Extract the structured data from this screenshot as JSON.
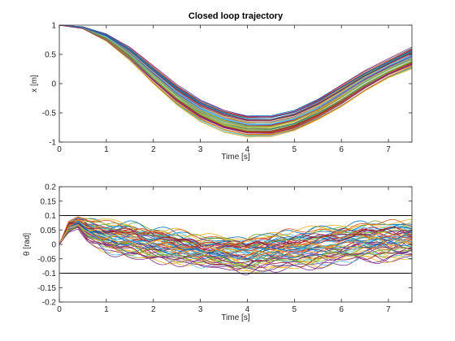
{
  "chart_data": [
    {
      "type": "line",
      "title": "Closed loop trajectory",
      "xlabel": "Time [s]",
      "ylabel": "x [m]",
      "xlim": [
        0,
        7.5
      ],
      "ylim": [
        -1,
        1
      ],
      "xticks": [
        "0",
        "1",
        "2",
        "3",
        "4",
        "5",
        "6",
        "7"
      ],
      "yticks": [
        "-1",
        "-0.5",
        "0",
        "0.5",
        "1"
      ],
      "grid": false,
      "legend": "none",
      "series_count": 60,
      "envelope": {
        "t": [
          0,
          0.5,
          1,
          1.5,
          2,
          2.5,
          3,
          3.5,
          4,
          4.5,
          5,
          5.5,
          6,
          6.5,
          7,
          7.5
        ],
        "lower": [
          1.0,
          0.94,
          0.72,
          0.38,
          -0.02,
          -0.38,
          -0.66,
          -0.84,
          -0.92,
          -0.92,
          -0.82,
          -0.64,
          -0.42,
          -0.15,
          0.08,
          0.24
        ],
        "upper": [
          1.0,
          0.97,
          0.85,
          0.62,
          0.3,
          -0.02,
          -0.28,
          -0.45,
          -0.55,
          -0.55,
          -0.46,
          -0.27,
          -0.02,
          0.22,
          0.42,
          0.62
        ]
      }
    },
    {
      "type": "line",
      "title": "",
      "xlabel": "Time [s]",
      "ylabel": "θ [rad]",
      "xlim": [
        0,
        7.5
      ],
      "ylim": [
        -0.2,
        0.2
      ],
      "xticks": [
        "0",
        "1",
        "2",
        "3",
        "4",
        "5",
        "6",
        "7"
      ],
      "yticks": [
        "-0.2",
        "-0.15",
        "-0.1",
        "-0.05",
        "0",
        "0.05",
        "0.1",
        "0.15",
        "0.2"
      ],
      "grid": false,
      "legend": "none",
      "limits": [
        0.1,
        -0.1
      ],
      "series_count": 60,
      "envelope": {
        "t": [
          0,
          0.2,
          0.4,
          0.6,
          1,
          1.5,
          2,
          2.5,
          3,
          3.5,
          4,
          4.5,
          5,
          5.5,
          6,
          6.5,
          7,
          7.5
        ],
        "lower": [
          0,
          0.04,
          0.06,
          0.02,
          -0.02,
          -0.04,
          -0.05,
          -0.06,
          -0.07,
          -0.08,
          -0.09,
          -0.08,
          -0.08,
          -0.07,
          -0.06,
          -0.05,
          -0.05,
          -0.04
        ],
        "upper": [
          0,
          0.08,
          0.09,
          0.08,
          0.07,
          0.07,
          0.05,
          0.04,
          0.02,
          0.02,
          0.02,
          0.03,
          0.04,
          0.05,
          0.06,
          0.07,
          0.07,
          0.07
        ]
      }
    }
  ],
  "colors": [
    "#0072bd",
    "#d95319",
    "#edb120",
    "#7e2f8e",
    "#77ac30",
    "#4dbeee",
    "#a2142f"
  ]
}
